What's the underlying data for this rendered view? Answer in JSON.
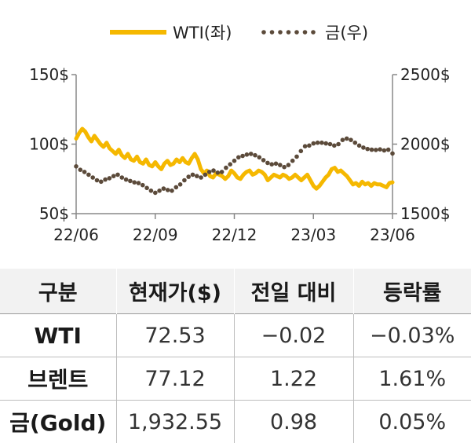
{
  "chart_data": {
    "type": "line",
    "legend": {
      "position": "top",
      "entries": [
        "WTI(좌)",
        "금(우)"
      ]
    },
    "x_ticks": [
      "22/06",
      "22/09",
      "22/12",
      "23/03",
      "23/06"
    ],
    "y_left": {
      "ticks": [
        "50$",
        "100$",
        "150$"
      ],
      "range": [
        50,
        150
      ]
    },
    "y_right": {
      "ticks": [
        "1500$",
        "2000$",
        "2500$"
      ],
      "range": [
        1500,
        2500
      ]
    },
    "colors": {
      "wti": "#f5b800",
      "gold": "#5b4a3a"
    },
    "series": [
      {
        "name": "WTI(좌)",
        "axis": "left",
        "style": "solid",
        "values": [
          104,
          108,
          111,
          109,
          105,
          102,
          106,
          103,
          100,
          98,
          101,
          97,
          95,
          93,
          96,
          92,
          90,
          93,
          89,
          88,
          91,
          87,
          86,
          89,
          85,
          84,
          87,
          84,
          82,
          86,
          88,
          85,
          86,
          89,
          87,
          90,
          87,
          86,
          90,
          93,
          89,
          82,
          79,
          81,
          77,
          76,
          79,
          78,
          77,
          75,
          77,
          81,
          79,
          76,
          75,
          78,
          80,
          81,
          78,
          79,
          81,
          80,
          78,
          74,
          76,
          78,
          77,
          76,
          78,
          77,
          75,
          76,
          78,
          76,
          74,
          76,
          78,
          74,
          70,
          68,
          70,
          73,
          76,
          78,
          82,
          83,
          80,
          81,
          79,
          77,
          74,
          71,
          72,
          70,
          73,
          71,
          72,
          70,
          72,
          71,
          71,
          70,
          69,
          72,
          72.53
        ]
      },
      {
        "name": "금(우)",
        "axis": "right",
        "style": "dotted",
        "values": [
          1840,
          1815,
          1800,
          1780,
          1760,
          1740,
          1730,
          1745,
          1755,
          1770,
          1780,
          1760,
          1745,
          1735,
          1725,
          1720,
          1705,
          1685,
          1665,
          1650,
          1665,
          1680,
          1670,
          1665,
          1690,
          1710,
          1740,
          1765,
          1780,
          1770,
          1760,
          1780,
          1800,
          1810,
          1795,
          1800,
          1830,
          1855,
          1880,
          1905,
          1915,
          1925,
          1930,
          1920,
          1905,
          1885,
          1865,
          1855,
          1860,
          1850,
          1835,
          1850,
          1880,
          1910,
          1950,
          1985,
          1990,
          2005,
          2010,
          2010,
          2005,
          2000,
          1990,
          2000,
          2030,
          2040,
          2030,
          2010,
          1990,
          1975,
          1965,
          1960,
          1958,
          1962,
          1955,
          1960,
          1932.55
        ]
      }
    ]
  },
  "table": {
    "headers": [
      "구분",
      "현재가($)",
      "전일 대비",
      "등락률"
    ],
    "rows": [
      [
        "WTI",
        "72.53",
        "−0.02",
        "−0.03%"
      ],
      [
        "브렌트",
        "77.12",
        "1.22",
        "1.61%"
      ],
      [
        "금(Gold)",
        "1,932.55",
        "0.98",
        "0.05%"
      ]
    ]
  }
}
